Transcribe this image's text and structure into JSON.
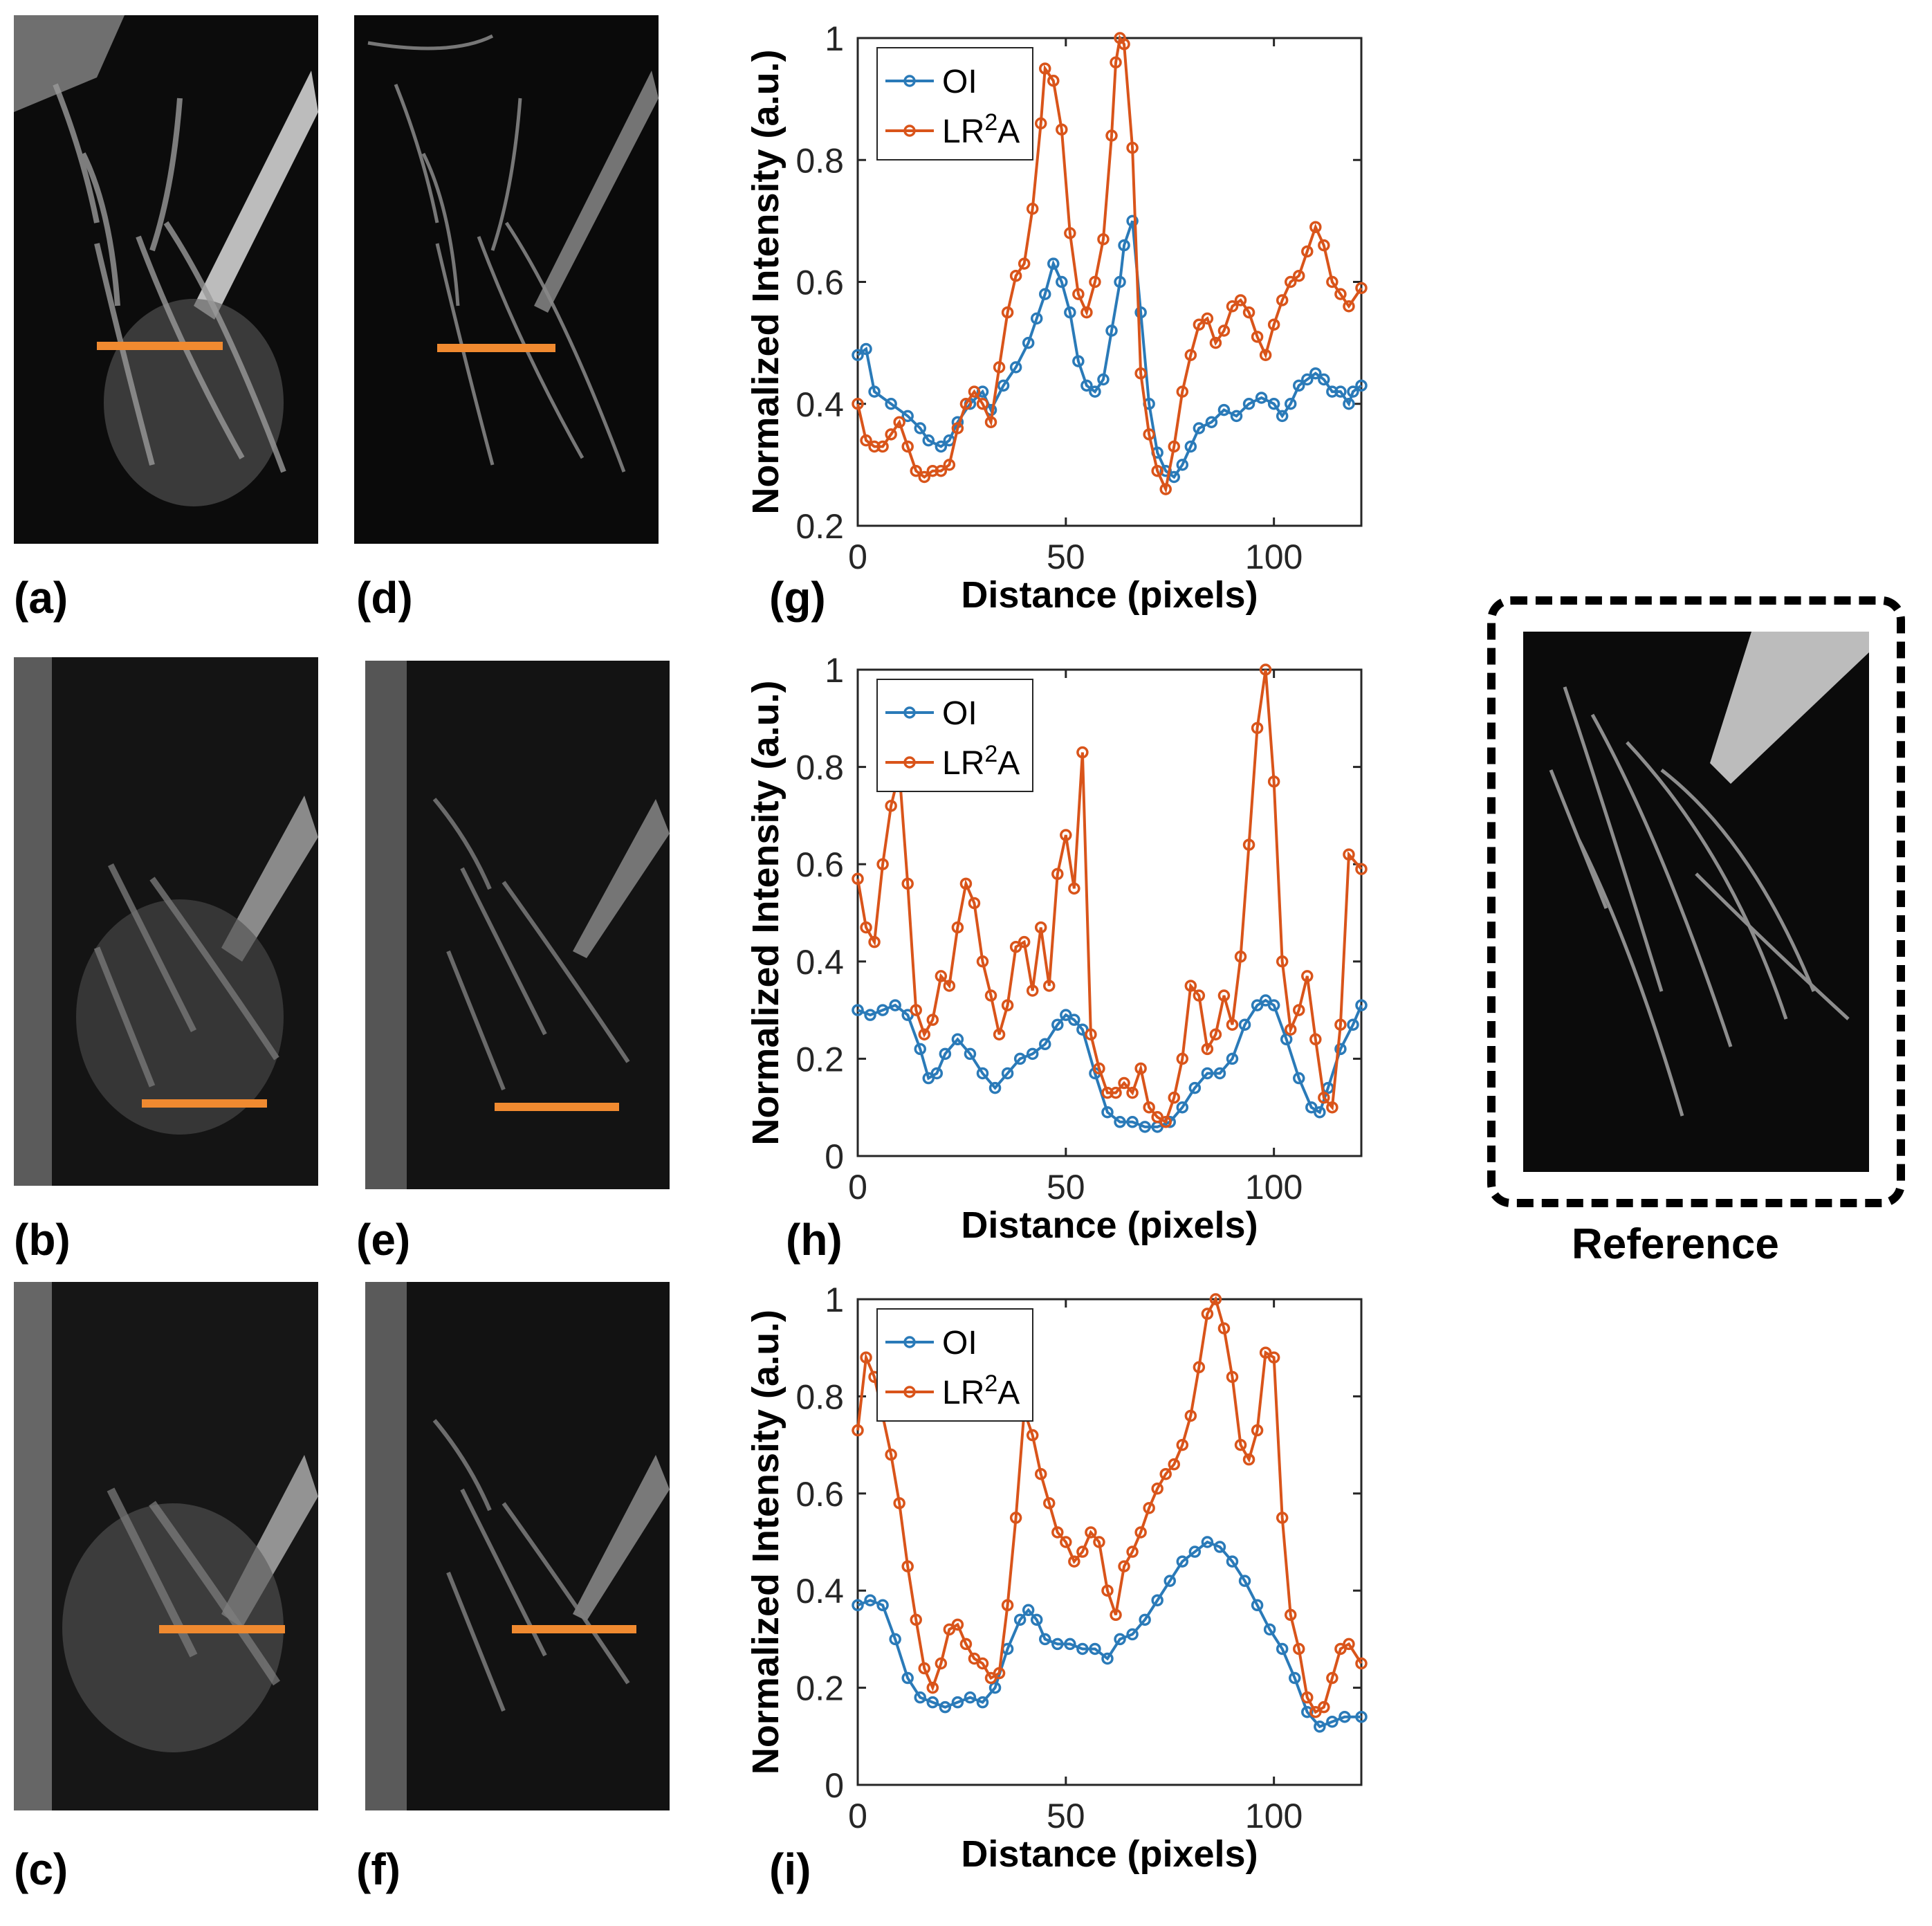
{
  "panel_labels": {
    "a": "(a)",
    "b": "(b)",
    "c": "(c)",
    "d": "(d)",
    "e": "(e)",
    "f": "(f)",
    "g": "(g)",
    "h": "(h)",
    "i": "(i)"
  },
  "reference_label": "Reference",
  "colors": {
    "OI": "#2a7ab8",
    "LR2A": "#d9541a",
    "profile_line": "#f08a30"
  },
  "chart_data": [
    {
      "type": "line",
      "panel": "g",
      "xlabel": "Distance (pixels)",
      "ylabel": "Normalized Intensity (a.u.)",
      "xlim": [
        0,
        121
      ],
      "ylim": [
        0.2,
        1
      ],
      "xticks": [
        0,
        50,
        100
      ],
      "yticks": [
        0.2,
        0.4,
        0.6,
        0.8,
        1
      ],
      "ytick_labels": [
        "0.2",
        "0.4",
        "0.6",
        "0.8",
        "1"
      ],
      "legend": [
        "OI",
        "LR2A"
      ],
      "legend_position": "top-left",
      "series": [
        {
          "name": "OI",
          "x": [
            0,
            2,
            4,
            8,
            12,
            15,
            17,
            20,
            22,
            24,
            27,
            30,
            32,
            35,
            38,
            41,
            43,
            45,
            47,
            49,
            51,
            53,
            55,
            57,
            59,
            61,
            63,
            64,
            66,
            68,
            70,
            72,
            74,
            76,
            78,
            80,
            82,
            85,
            88,
            91,
            94,
            97,
            100,
            102,
            104,
            106,
            108,
            110,
            112,
            114,
            116,
            118,
            119,
            121
          ],
          "y": [
            0.48,
            0.49,
            0.42,
            0.4,
            0.38,
            0.36,
            0.34,
            0.33,
            0.34,
            0.37,
            0.4,
            0.42,
            0.39,
            0.43,
            0.46,
            0.5,
            0.54,
            0.58,
            0.63,
            0.6,
            0.55,
            0.47,
            0.43,
            0.42,
            0.44,
            0.52,
            0.6,
            0.66,
            0.7,
            0.55,
            0.4,
            0.32,
            0.29,
            0.28,
            0.3,
            0.33,
            0.36,
            0.37,
            0.39,
            0.38,
            0.4,
            0.41,
            0.4,
            0.38,
            0.4,
            0.43,
            0.44,
            0.45,
            0.44,
            0.42,
            0.42,
            0.4,
            0.42,
            0.43
          ]
        },
        {
          "name": "LR2A",
          "x": [
            0,
            2,
            4,
            6,
            8,
            10,
            12,
            14,
            16,
            18,
            20,
            22,
            24,
            26,
            28,
            30,
            32,
            34,
            36,
            38,
            40,
            42,
            44,
            45,
            47,
            49,
            51,
            53,
            55,
            57,
            59,
            61,
            62,
            63,
            64,
            66,
            68,
            70,
            72,
            74,
            76,
            78,
            80,
            82,
            84,
            86,
            88,
            90,
            92,
            94,
            96,
            98,
            100,
            102,
            104,
            106,
            108,
            110,
            112,
            114,
            116,
            118,
            121
          ],
          "y": [
            0.4,
            0.34,
            0.33,
            0.33,
            0.35,
            0.37,
            0.33,
            0.29,
            0.28,
            0.29,
            0.29,
            0.3,
            0.36,
            0.4,
            0.42,
            0.4,
            0.37,
            0.46,
            0.55,
            0.61,
            0.63,
            0.72,
            0.86,
            0.95,
            0.93,
            0.85,
            0.68,
            0.58,
            0.55,
            0.6,
            0.67,
            0.84,
            0.96,
            1.0,
            0.99,
            0.82,
            0.45,
            0.35,
            0.29,
            0.26,
            0.33,
            0.42,
            0.48,
            0.53,
            0.54,
            0.5,
            0.52,
            0.56,
            0.57,
            0.55,
            0.51,
            0.48,
            0.53,
            0.57,
            0.6,
            0.61,
            0.65,
            0.69,
            0.66,
            0.6,
            0.58,
            0.56,
            0.59
          ]
        }
      ]
    },
    {
      "type": "line",
      "panel": "h",
      "xlabel": "Distance (pixels)",
      "ylabel": "Normalized Intensity (a.u.)",
      "xlim": [
        0,
        121
      ],
      "ylim": [
        0,
        1
      ],
      "xticks": [
        0,
        50,
        100
      ],
      "yticks": [
        0,
        0.2,
        0.4,
        0.6,
        0.8,
        1
      ],
      "ytick_labels": [
        "0",
        "0.2",
        "0.4",
        "0.6",
        "0.8",
        "1"
      ],
      "legend": [
        "OI",
        "LR2A"
      ],
      "legend_position": "top-left",
      "series": [
        {
          "name": "OI",
          "x": [
            0,
            3,
            6,
            9,
            12,
            15,
            17,
            19,
            21,
            24,
            27,
            30,
            33,
            36,
            39,
            42,
            45,
            48,
            50,
            52,
            54,
            57,
            60,
            63,
            66,
            69,
            72,
            75,
            78,
            81,
            84,
            87,
            90,
            93,
            96,
            98,
            100,
            103,
            106,
            109,
            111,
            113,
            116,
            119,
            121
          ],
          "y": [
            0.3,
            0.29,
            0.3,
            0.31,
            0.29,
            0.22,
            0.16,
            0.17,
            0.21,
            0.24,
            0.21,
            0.17,
            0.14,
            0.17,
            0.2,
            0.21,
            0.23,
            0.27,
            0.29,
            0.28,
            0.26,
            0.17,
            0.09,
            0.07,
            0.07,
            0.06,
            0.06,
            0.07,
            0.1,
            0.14,
            0.17,
            0.17,
            0.2,
            0.27,
            0.31,
            0.32,
            0.31,
            0.24,
            0.16,
            0.1,
            0.09,
            0.14,
            0.22,
            0.27,
            0.31
          ]
        },
        {
          "name": "LR2A",
          "x": [
            0,
            2,
            4,
            6,
            8,
            10,
            12,
            14,
            16,
            18,
            20,
            22,
            24,
            26,
            28,
            30,
            32,
            34,
            36,
            38,
            40,
            42,
            44,
            46,
            48,
            50,
            52,
            54,
            56,
            58,
            60,
            62,
            64,
            66,
            68,
            70,
            72,
            74,
            76,
            78,
            80,
            82,
            84,
            86,
            88,
            90,
            92,
            94,
            96,
            98,
            100,
            102,
            104,
            106,
            108,
            110,
            112,
            114,
            116,
            118,
            121
          ],
          "y": [
            0.57,
            0.47,
            0.44,
            0.6,
            0.72,
            0.79,
            0.56,
            0.3,
            0.25,
            0.28,
            0.37,
            0.35,
            0.47,
            0.56,
            0.52,
            0.4,
            0.33,
            0.25,
            0.31,
            0.43,
            0.44,
            0.34,
            0.47,
            0.35,
            0.58,
            0.66,
            0.55,
            0.83,
            0.25,
            0.18,
            0.13,
            0.13,
            0.15,
            0.13,
            0.18,
            0.1,
            0.08,
            0.07,
            0.12,
            0.2,
            0.35,
            0.33,
            0.22,
            0.25,
            0.33,
            0.27,
            0.41,
            0.64,
            0.88,
            1.0,
            0.77,
            0.4,
            0.26,
            0.3,
            0.37,
            0.24,
            0.12,
            0.1,
            0.27,
            0.62,
            0.59
          ]
        }
      ]
    },
    {
      "type": "line",
      "panel": "i",
      "xlabel": "Distance (pixels)",
      "ylabel": "Normalized Intensity (a.u.)",
      "xlim": [
        0,
        121
      ],
      "ylim": [
        0,
        1
      ],
      "xticks": [
        0,
        50,
        100
      ],
      "yticks": [
        0,
        0.2,
        0.4,
        0.6,
        0.8,
        1
      ],
      "ytick_labels": [
        "0",
        "0.2",
        "0.4",
        "0.6",
        "0.8",
        "1"
      ],
      "legend": [
        "OI",
        "LR2A"
      ],
      "legend_position": "top-left",
      "series": [
        {
          "name": "OI",
          "x": [
            0,
            3,
            6,
            9,
            12,
            15,
            18,
            21,
            24,
            27,
            30,
            33,
            36,
            39,
            41,
            43,
            45,
            48,
            51,
            54,
            57,
            60,
            63,
            66,
            69,
            72,
            75,
            78,
            81,
            84,
            87,
            90,
            93,
            96,
            99,
            102,
            105,
            108,
            111,
            114,
            117,
            121
          ],
          "y": [
            0.37,
            0.38,
            0.37,
            0.3,
            0.22,
            0.18,
            0.17,
            0.16,
            0.17,
            0.18,
            0.17,
            0.2,
            0.28,
            0.34,
            0.36,
            0.34,
            0.3,
            0.29,
            0.29,
            0.28,
            0.28,
            0.26,
            0.3,
            0.31,
            0.34,
            0.38,
            0.42,
            0.46,
            0.48,
            0.5,
            0.49,
            0.46,
            0.42,
            0.37,
            0.32,
            0.28,
            0.22,
            0.15,
            0.12,
            0.13,
            0.14,
            0.14
          ]
        },
        {
          "name": "LR2A",
          "x": [
            0,
            2,
            4,
            6,
            8,
            10,
            12,
            14,
            16,
            18,
            20,
            22,
            24,
            26,
            28,
            30,
            32,
            34,
            36,
            38,
            40,
            42,
            44,
            46,
            48,
            50,
            52,
            54,
            56,
            58,
            60,
            62,
            64,
            66,
            68,
            70,
            72,
            74,
            76,
            78,
            80,
            82,
            84,
            86,
            88,
            90,
            92,
            94,
            96,
            98,
            100,
            102,
            104,
            106,
            108,
            110,
            112,
            114,
            116,
            118,
            121
          ],
          "y": [
            0.73,
            0.88,
            0.84,
            0.76,
            0.68,
            0.58,
            0.45,
            0.34,
            0.24,
            0.2,
            0.25,
            0.32,
            0.33,
            0.29,
            0.26,
            0.25,
            0.22,
            0.23,
            0.37,
            0.55,
            0.77,
            0.72,
            0.64,
            0.58,
            0.52,
            0.5,
            0.46,
            0.48,
            0.52,
            0.5,
            0.4,
            0.35,
            0.45,
            0.48,
            0.52,
            0.57,
            0.61,
            0.64,
            0.66,
            0.7,
            0.76,
            0.86,
            0.97,
            1.0,
            0.94,
            0.84,
            0.7,
            0.67,
            0.73,
            0.89,
            0.88,
            0.55,
            0.35,
            0.28,
            0.18,
            0.15,
            0.16,
            0.22,
            0.28,
            0.29,
            0.25
          ]
        }
      ]
    }
  ]
}
